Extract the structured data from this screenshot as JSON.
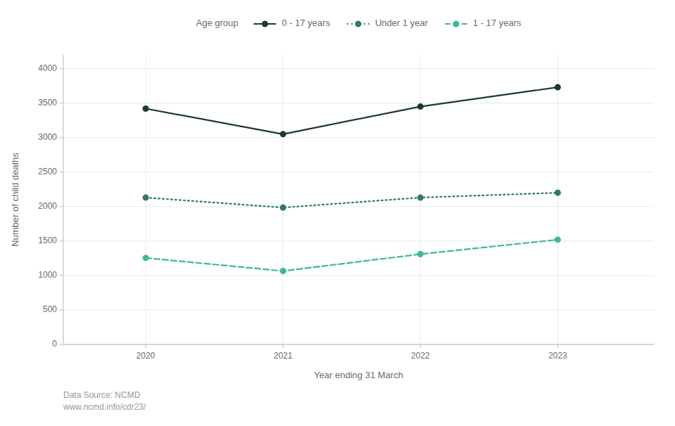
{
  "chart_data": {
    "type": "line",
    "x": [
      2020,
      2021,
      2022,
      2023
    ],
    "series": [
      {
        "name": "0 - 17 years",
        "color": "#1a3a2a",
        "line_style": "solid",
        "marker": "circle",
        "values": [
          3420,
          3050,
          3450,
          3730
        ]
      },
      {
        "name": "Under 1 year",
        "color": "#2e7d5e",
        "line_style": "dotted",
        "marker": "circle",
        "values": [
          2130,
          1985,
          2130,
          2200
        ]
      },
      {
        "name": "1 - 17 years",
        "color": "#3db89a",
        "line_style": "dashed",
        "marker": "circle",
        "values": [
          1255,
          1065,
          1310,
          1520
        ]
      }
    ],
    "xlabel": "Year ending 31 March",
    "ylabel": "Number of child deaths",
    "xlim": [
      2019.4,
      2023.7
    ],
    "xticks": [
      2020,
      2021,
      2022,
      2023
    ],
    "ylim": [
      0,
      4200
    ],
    "yticks": [
      0,
      500,
      1000,
      1500,
      2000,
      2500,
      3000,
      3500,
      4000
    ],
    "grid": true,
    "legend": "top",
    "legend_title": "Age group",
    "annotations": [
      "Data Source: NCMD",
      "www.ncmd.info/cdr23/"
    ]
  }
}
